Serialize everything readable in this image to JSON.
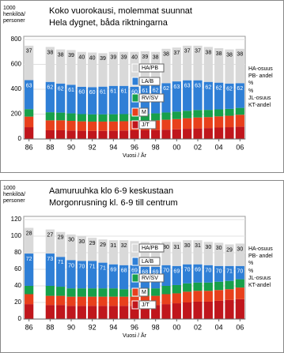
{
  "chart_data": [
    {
      "type": "bar",
      "stacked": true,
      "title": "Koko vuorokausi, molemmat suunnat",
      "subtitle": "Hela dygnet, båda riktningarna",
      "y_label": "1000 henkilöä/ personer",
      "x_label": "Vuosi / År",
      "annotations": [
        "HA-osuus",
        "PB- andel",
        "%",
        "%",
        "JL-osuus",
        "KT-andel"
      ],
      "categories": [
        "86",
        null,
        "88",
        null,
        "90",
        null,
        "92",
        null,
        "94",
        null,
        "96",
        null,
        "98",
        null,
        "00",
        null,
        "02",
        null,
        "04",
        null,
        "06"
      ],
      "ylim": [
        0,
        800
      ],
      "yticks": [
        0,
        200,
        400,
        600,
        800
      ],
      "series": [
        {
          "name": "J/T",
          "color": "#c0161c",
          "values": [
            95,
            null,
            70,
            70,
            68,
            66,
            65,
            65,
            66,
            68,
            70,
            70,
            72,
            75,
            78,
            82,
            85,
            88,
            92,
            95,
            100
          ]
        },
        {
          "name": "M",
          "color": "#e8401c",
          "values": [
            85,
            null,
            80,
            80,
            78,
            76,
            75,
            75,
            75,
            75,
            75,
            76,
            78,
            80,
            82,
            85,
            88,
            88,
            90,
            92,
            95
          ]
        },
        {
          "name": "RV/SV",
          "color": "#17a04a",
          "values": [
            60,
            null,
            65,
            62,
            60,
            58,
            58,
            58,
            58,
            57,
            56,
            56,
            56,
            58,
            60,
            60,
            60,
            58,
            56,
            55,
            55
          ]
        },
        {
          "name": "LA/B",
          "color": "#2f7fd6",
          "values": [
            233,
            null,
            244,
            234,
            230,
            220,
            219,
            223,
            228,
            227,
            219,
            228,
            228,
            236,
            243,
            245,
            239,
            225,
            215,
            204,
            199
          ],
          "shares": [
            63,
            null,
            62,
            62,
            61,
            60,
            60,
            61,
            61,
            61,
            60,
            61,
            62,
            62,
            63,
            63,
            63,
            62,
            62,
            62,
            62
          ]
        },
        {
          "name": "HA/PB",
          "color": "#d9d9d9",
          "values": [
            277,
            null,
            281,
            274,
            279,
            280,
            278,
            269,
            273,
            273,
            280,
            275,
            266,
            276,
            272,
            278,
            278,
            281,
            277,
            274,
            276
          ],
          "shares": [
            37,
            null,
            38,
            38,
            39,
            40,
            40,
            39,
            39,
            39,
            40,
            39,
            38,
            38,
            37,
            37,
            37,
            38,
            38,
            38,
            38
          ]
        }
      ]
    },
    {
      "type": "bar",
      "stacked": true,
      "title": "Aamuruuhka klo 6-9 keskustaan",
      "subtitle": "Morgonrusning kl. 6-9 till centrum",
      "y_label": "1000 henkilöä/ personer",
      "x_label": "Vuosi / År",
      "annotations": [
        "HA-osuus",
        "PB- andel",
        "%",
        "%",
        "JL-osuus",
        "KT-andel"
      ],
      "categories": [
        "86",
        null,
        "88",
        null,
        "90",
        null,
        "92",
        null,
        "94",
        null,
        "96",
        null,
        "98",
        null,
        "00",
        null,
        "02",
        null,
        "04",
        null,
        "06"
      ],
      "ylim": [
        0,
        120
      ],
      "yticks": [
        0,
        20,
        40,
        60,
        80,
        100,
        120
      ],
      "series": [
        {
          "name": "J/T",
          "color": "#c0161c",
          "values": [
            18,
            null,
            17,
            17,
            16,
            16,
            16,
            16,
            16,
            16,
            16,
            17,
            17,
            18,
            19,
            20,
            21,
            21,
            22,
            23,
            24
          ]
        },
        {
          "name": "M",
          "color": "#e8401c",
          "values": [
            12,
            null,
            11,
            11,
            11,
            11,
            11,
            11,
            11,
            11,
            11,
            11,
            11,
            12,
            12,
            13,
            13,
            13,
            13,
            13,
            14
          ]
        },
        {
          "name": "RV/SV",
          "color": "#17a04a",
          "values": [
            10,
            null,
            12,
            11,
            10,
            10,
            10,
            10,
            10,
            9,
            9,
            9,
            9,
            10,
            10,
            10,
            10,
            10,
            10,
            10,
            10
          ]
        },
        {
          "name": "LA/B",
          "color": "#2f7fd6",
          "values": [
            39,
            null,
            39,
            36,
            34,
            33,
            33,
            31,
            29,
            29,
            29,
            26,
            26,
            25,
            23,
            23,
            22,
            21,
            19,
            18,
            16
          ],
          "shares": [
            72,
            null,
            73,
            71,
            70,
            70,
            71,
            71,
            69,
            68,
            69,
            68,
            69,
            70,
            69,
            70,
            69,
            70,
            70,
            71,
            70
          ]
        },
        {
          "name": "HA/PB",
          "color": "#d9d9d9",
          "values": [
            31,
            null,
            29,
            30,
            31,
            30,
            28,
            28,
            29,
            30,
            29,
            30,
            29,
            28,
            29,
            29,
            29,
            28,
            28,
            26,
            27
          ],
          "shares": [
            28,
            null,
            27,
            29,
            30,
            30,
            29,
            29,
            31,
            32,
            31,
            32,
            31,
            30,
            31,
            30,
            31,
            30,
            30,
            29,
            30
          ]
        }
      ]
    }
  ]
}
